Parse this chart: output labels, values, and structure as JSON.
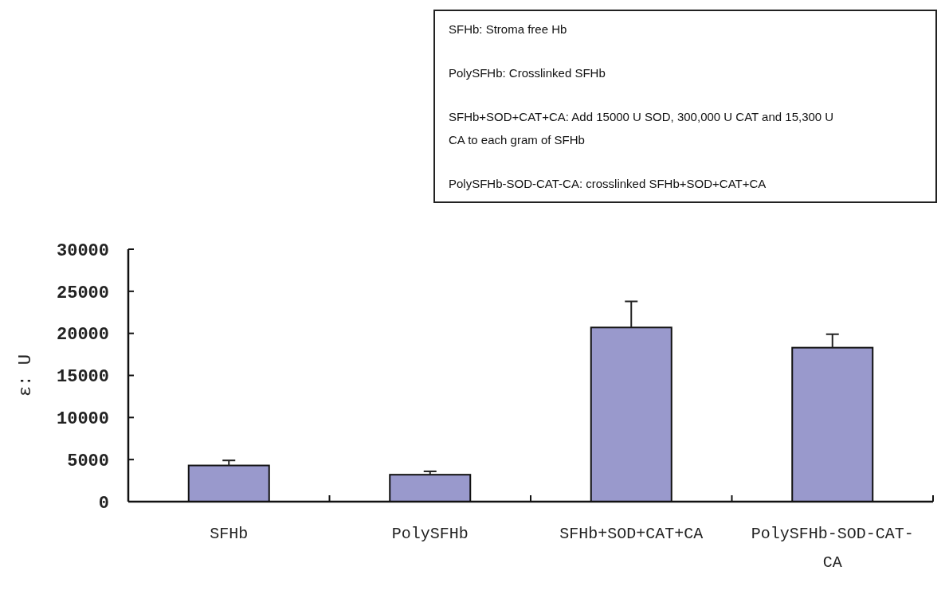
{
  "chart_data": {
    "type": "bar",
    "categories": [
      "SFHb",
      "PolySFHb",
      "SFHb+SOD+CAT+CA",
      "PolySFHb-SOD-CAT-CA"
    ],
    "values": [
      4300,
      3200,
      20700,
      18300
    ],
    "errors": [
      600,
      400,
      3100,
      1600
    ],
    "color": "#9999cc",
    "ylabel": "ε: U",
    "ylim": [
      0,
      30000
    ],
    "yticks": [
      0,
      5000,
      10000,
      15000,
      20000,
      25000,
      30000
    ],
    "grid": false,
    "annotations": [
      "SFHb: Stroma free Hb",
      "PolySFHb: Crosslinked SFHb",
      "SFHb+SOD+CAT+CA: Add 15000 U SOD, 300,000 U CAT and 15,300 U CA to each gram of SFHb",
      "PolySFHb-SOD-CAT-CA: crosslinked SFHb+SOD+CAT+CA"
    ]
  }
}
